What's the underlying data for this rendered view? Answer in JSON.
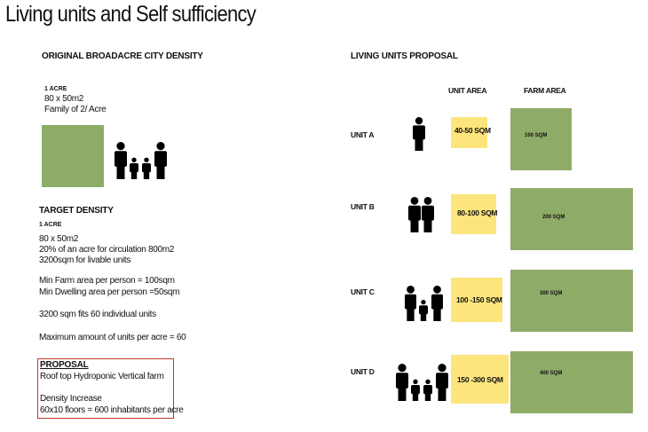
{
  "title": "Living units and Self sufficiency",
  "left": {
    "original_heading": "ORIGINAL BROADACRE CITY DENSITY",
    "original_acre": "1 ACRE",
    "original_lines": [
      "80 x 50m2",
      "Family of 2/ Acre"
    ],
    "target_heading": "TARGET DENSITY",
    "target_acre": "1 ACRE",
    "target_lines": [
      "80 x 50m2",
      "20% of an acre for circulation 800m2",
      "3200sqm for livable units",
      "Min Farm area per person = 100sqm",
      "Min Dwelling area per person =50sqm",
      "3200 sqm fits 60 individual units",
      "Maximum amount of units per acre = 60"
    ],
    "proposal_heading": "PROPOSAL",
    "proposal_lines": [
      "Roof top Hydroponic Vertical farm",
      "Density Increase",
      "60x10 floors = 600 inhabitants per acre"
    ]
  },
  "right": {
    "heading": "LIVING UNITS PROPOSAL",
    "col_unit_area": "UNIT AREA",
    "col_farm_area": "FARM AREA",
    "units": [
      {
        "label": "UNIT A",
        "people": 1,
        "unit_area": "40-50 SQM",
        "farm_area": "100 SQM"
      },
      {
        "label": "UNIT B",
        "people": 2,
        "unit_area": "80-100 SQM",
        "farm_area": "200 SQM"
      },
      {
        "label": "UNIT C",
        "people": 3,
        "unit_area": "100 -150 SQM",
        "farm_area": "300 SQM"
      },
      {
        "label": "UNIT D",
        "people": 4,
        "unit_area": "150 -300 SQM",
        "farm_area": "400 SQM"
      }
    ]
  },
  "colors": {
    "farm": "#8fab68",
    "unit": "#fde57e",
    "proposal_border": "#c0392b"
  }
}
